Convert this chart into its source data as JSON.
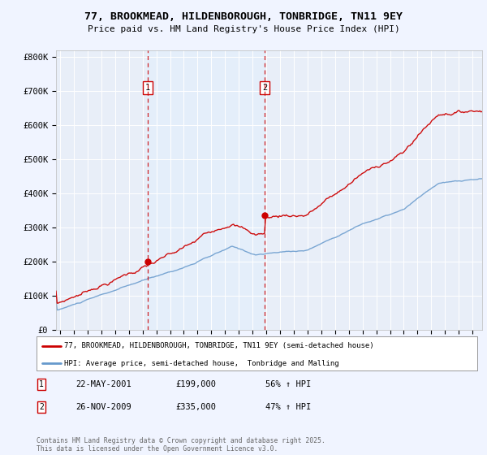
{
  "title_line1": "77, BROOKMEAD, HILDENBOROUGH, TONBRIDGE, TN11 9EY",
  "title_line2": "Price paid vs. HM Land Registry's House Price Index (HPI)",
  "background_color": "#f0f4ff",
  "plot_bg_color": "#e8eef8",
  "legend_label_red": "77, BROOKMEAD, HILDENBOROUGH, TONBRIDGE, TN11 9EY (semi-detached house)",
  "legend_label_blue": "HPI: Average price, semi-detached house,  Tonbridge and Malling",
  "footnote": "Contains HM Land Registry data © Crown copyright and database right 2025.\nThis data is licensed under the Open Government Licence v3.0.",
  "annotation1": {
    "num": "1",
    "date": "22-MAY-2001",
    "price": 199000,
    "pct": "56% ↑ HPI",
    "x_year": 2001.38
  },
  "annotation2": {
    "num": "2",
    "date": "26-NOV-2009",
    "price": 335000,
    "pct": "47% ↑ HPI",
    "x_year": 2009.9
  },
  "ylim": [
    0,
    820000
  ],
  "xlim_start": 1994.7,
  "xlim_end": 2025.7,
  "red_color": "#cc0000",
  "blue_color": "#6699cc",
  "shade_color": "#ddeeff",
  "dashed_color": "#cc0000",
  "yticks": [
    0,
    100000,
    200000,
    300000,
    400000,
    500000,
    600000,
    700000,
    800000
  ],
  "ytick_labels": [
    "£0",
    "£100K",
    "£200K",
    "£300K",
    "£400K",
    "£500K",
    "£600K",
    "£700K",
    "£800K"
  ],
  "xtick_years": [
    1995,
    1996,
    1997,
    1998,
    1999,
    2000,
    2001,
    2002,
    2003,
    2004,
    2005,
    2006,
    2007,
    2008,
    2009,
    2010,
    2011,
    2012,
    2013,
    2014,
    2015,
    2016,
    2017,
    2018,
    2019,
    2020,
    2021,
    2022,
    2023,
    2024,
    2025
  ]
}
